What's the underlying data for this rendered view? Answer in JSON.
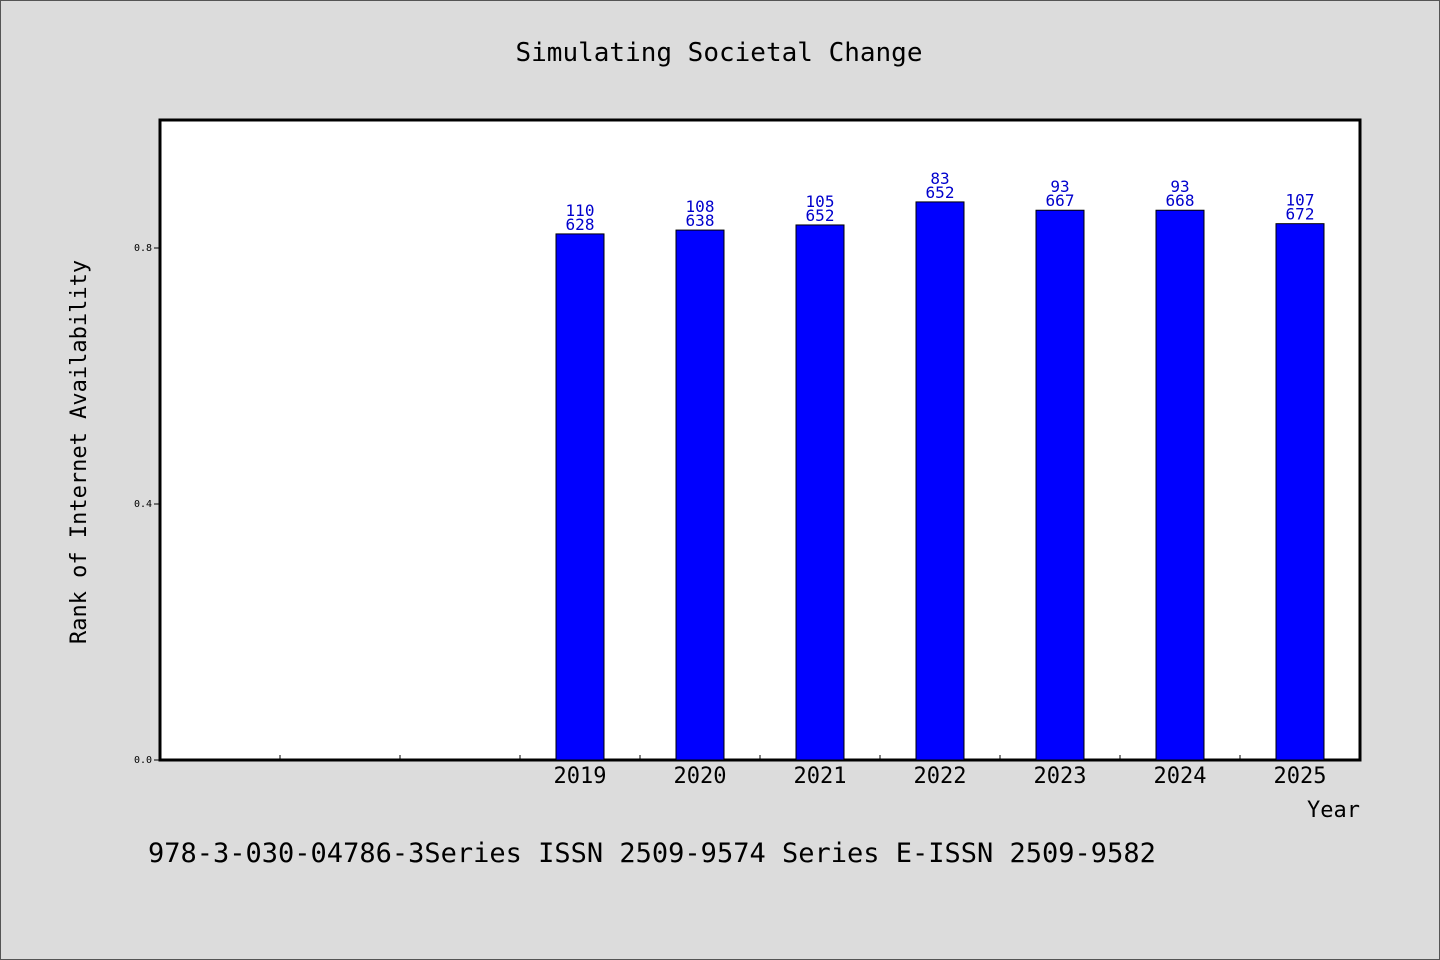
{
  "footer_text": "978-3-030-04786-3Series ISSN 2509-9574 Series E-ISSN 2509-9582",
  "chart_data": {
    "type": "bar",
    "title": "Simulating Societal Change",
    "xlabel": "Year",
    "ylabel": "Rank of Internet Availability",
    "categories": [
      "",
      "",
      "",
      "2019",
      "2020",
      "2021",
      "2022",
      "2023",
      "2024",
      "2025"
    ],
    "values": [
      null,
      null,
      null,
      0.822,
      0.828,
      0.836,
      0.872,
      0.859,
      0.859,
      0.838
    ],
    "bar_labels": [
      null,
      null,
      null,
      [
        "110",
        "628"
      ],
      [
        "108",
        "638"
      ],
      [
        "105",
        "652"
      ],
      [
        "83",
        "652"
      ],
      [
        "93",
        "667"
      ],
      [
        "93",
        "668"
      ],
      [
        "107",
        "672"
      ]
    ],
    "yticks": [
      "0.0",
      "0.4",
      "0.8"
    ],
    "ylim": [
      0,
      0.8
    ],
    "grid": false,
    "legend": "none",
    "colors": {
      "bar": "#0000ff",
      "bar_label": "#0000cc",
      "axis": "#000000",
      "plot_bg": "#ffffff",
      "page_bg": "#dcdcdc"
    }
  }
}
